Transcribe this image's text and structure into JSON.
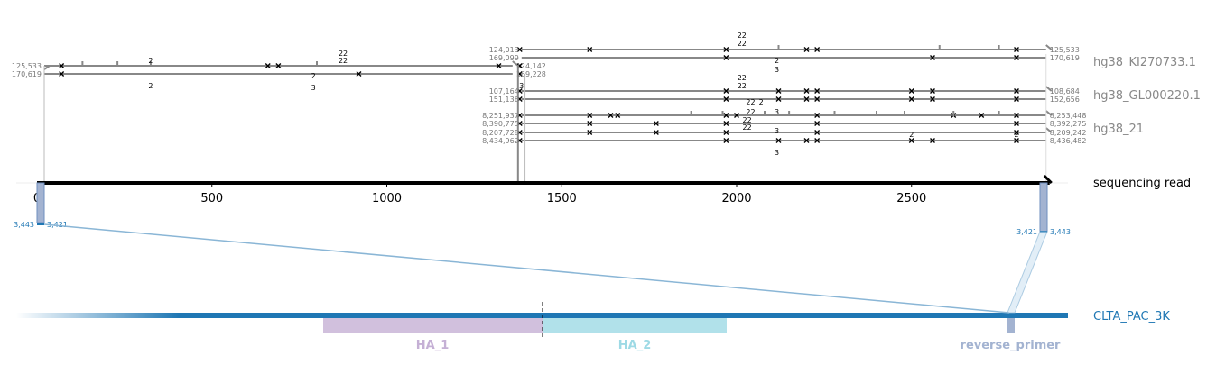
{
  "read": {
    "label": "sequencing read",
    "axis_ticks": [
      0,
      500,
      1000,
      1500,
      2000,
      2500
    ],
    "length": 2900
  },
  "references": [
    {
      "name": "hg38_KI270733.1",
      "color": "#888888"
    },
    {
      "name": "hg38_GL000220.1",
      "color": "#888888"
    },
    {
      "name": "hg38_21",
      "color": "#888888"
    }
  ],
  "alignments": [
    {
      "group": "hg38_KI270733.1",
      "read_start": 0,
      "read_end": 1375,
      "top_label": "125,533",
      "bottom_label": "170,619",
      "end_top": "124,142",
      "end_bottom": "169,228"
    },
    {
      "group": "hg38_KI270733.1",
      "read_start": 1375,
      "read_end": 2900,
      "top_label": "124,013",
      "bottom_label": "169,099",
      "end_top": "125,533",
      "end_bottom": "170,619"
    },
    {
      "group": "hg38_GL000220.1",
      "read_start": 1375,
      "read_end": 2900,
      "top_label": "107,164",
      "bottom_label": "151,136",
      "end_top": "108,684",
      "end_bottom": "152,656"
    },
    {
      "group": "hg38_21",
      "read_start": 1375,
      "read_end": 2900,
      "top_label": "8,251,937",
      "bottom_label": "8,390,775",
      "end_top": "8,253,448",
      "end_bottom": "8,392,275"
    },
    {
      "group": "hg38_21",
      "read_start": 1375,
      "read_end": 2900,
      "top_label": "8,207,728",
      "bottom_label": "8,434,962",
      "end_top": "8,209,242",
      "end_bottom": "8,436,482"
    }
  ],
  "indel_labels": [
    "2",
    "22",
    "3"
  ],
  "target": {
    "name": "CLTA_PAC_3K",
    "color": "#1f77b4",
    "features": [
      {
        "name": "HA_1",
        "color": "#c5b0d5"
      },
      {
        "name": "HA_2",
        "color": "#9edae5"
      },
      {
        "name": "reverse_primer",
        "color": "#a3b3d1"
      }
    ]
  },
  "primer_hits": [
    {
      "left": "3,443",
      "right": "3,421"
    },
    {
      "left": "3,421",
      "right": "3,443"
    }
  ]
}
